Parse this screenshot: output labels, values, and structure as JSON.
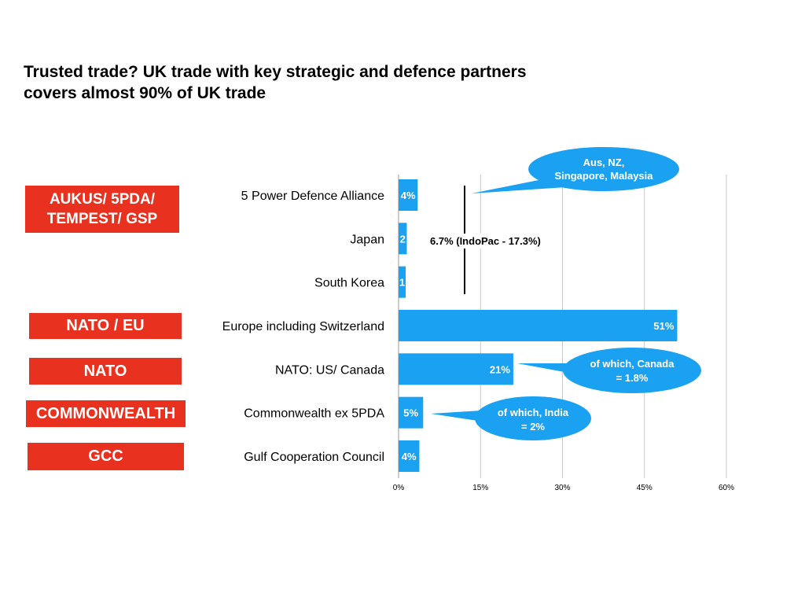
{
  "title_line1": "Trusted trade? UK trade with key strategic and defence partners",
  "title_line2": "covers almost 90% of UK trade",
  "tags": {
    "aukus_line1": "AUKUS/ 5PDA/",
    "aukus_line2": "TEMPEST/ GSP",
    "nato_eu": "NATO / EU",
    "nato": "NATO",
    "commonwealth": "COMMONWEALTH",
    "gcc": "GCC"
  },
  "annotations": {
    "indopac": "6.7% (IndoPac - 17.3%)",
    "bubble_5pda_line1": "Aus, NZ,",
    "bubble_5pda_line2": "Singapore, Malaysia",
    "bubble_canada_line1": "of which, Canada",
    "bubble_canada_line2": "= 1.8%",
    "bubble_india_line1": "of which, India",
    "bubble_india_line2": "= 2%"
  },
  "colors": {
    "bar": "#1ba1f2",
    "tag": "#e8321f",
    "grid": "#c8c8c8"
  },
  "chart_data": {
    "type": "bar",
    "orientation": "horizontal",
    "categories": [
      "5 Power Defence Alliance",
      "Japan",
      "South Korea",
      "Europe including Switzerland",
      "NATO: US/ Canada",
      "Commonwealth ex 5PDA",
      "Gulf Cooperation Council"
    ],
    "values": [
      3.5,
      1.5,
      1.3,
      51,
      21,
      4.5,
      3.8
    ],
    "value_labels": [
      "4%",
      "2",
      "1",
      "51%",
      "21%",
      "5%",
      "4%"
    ],
    "xlim": [
      0,
      60
    ],
    "xticks": [
      0,
      15,
      30,
      45,
      60
    ],
    "xtick_labels": [
      "0%",
      "15%",
      "30%",
      "45%",
      "60%"
    ],
    "grid": true
  }
}
